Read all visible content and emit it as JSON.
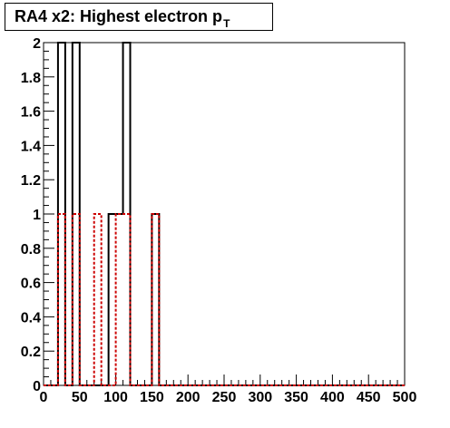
{
  "title": {
    "main": "RA4 x2: Highest electron p",
    "subscript": "T"
  },
  "chart_data": {
    "type": "histogram",
    "xlim": [
      0,
      500
    ],
    "ylim": [
      0,
      2
    ],
    "bin_width": 10,
    "x_ticks": [
      "0",
      "50",
      "100",
      "150",
      "200",
      "250",
      "300",
      "350",
      "400",
      "450",
      "500"
    ],
    "y_ticks": [
      "0",
      "0.2",
      "0.4",
      "0.6",
      "0.8",
      "1",
      "1.2",
      "1.4",
      "1.6",
      "1.8",
      "2"
    ],
    "grid": false,
    "series": [
      {
        "color": "#000000",
        "style": "solid",
        "bins": [
          {
            "x0": 20,
            "x1": 30,
            "y": 2
          },
          {
            "x0": 40,
            "x1": 50,
            "y": 2
          },
          {
            "x0": 90,
            "x1": 100,
            "y": 1
          },
          {
            "x0": 100,
            "x1": 110,
            "y": 1
          },
          {
            "x0": 110,
            "x1": 120,
            "y": 2
          },
          {
            "x0": 150,
            "x1": 160,
            "y": 1
          }
        ]
      },
      {
        "color": "#cc0000",
        "style": "dashed",
        "bins": [
          {
            "x0": 20,
            "x1": 30,
            "y": 1
          },
          {
            "x0": 40,
            "x1": 50,
            "y": 1
          },
          {
            "x0": 70,
            "x1": 80,
            "y": 1
          },
          {
            "x0": 100,
            "x1": 110,
            "y": 1
          },
          {
            "x0": 110,
            "x1": 120,
            "y": 1
          },
          {
            "x0": 150,
            "x1": 160,
            "y": 1
          }
        ]
      }
    ]
  }
}
